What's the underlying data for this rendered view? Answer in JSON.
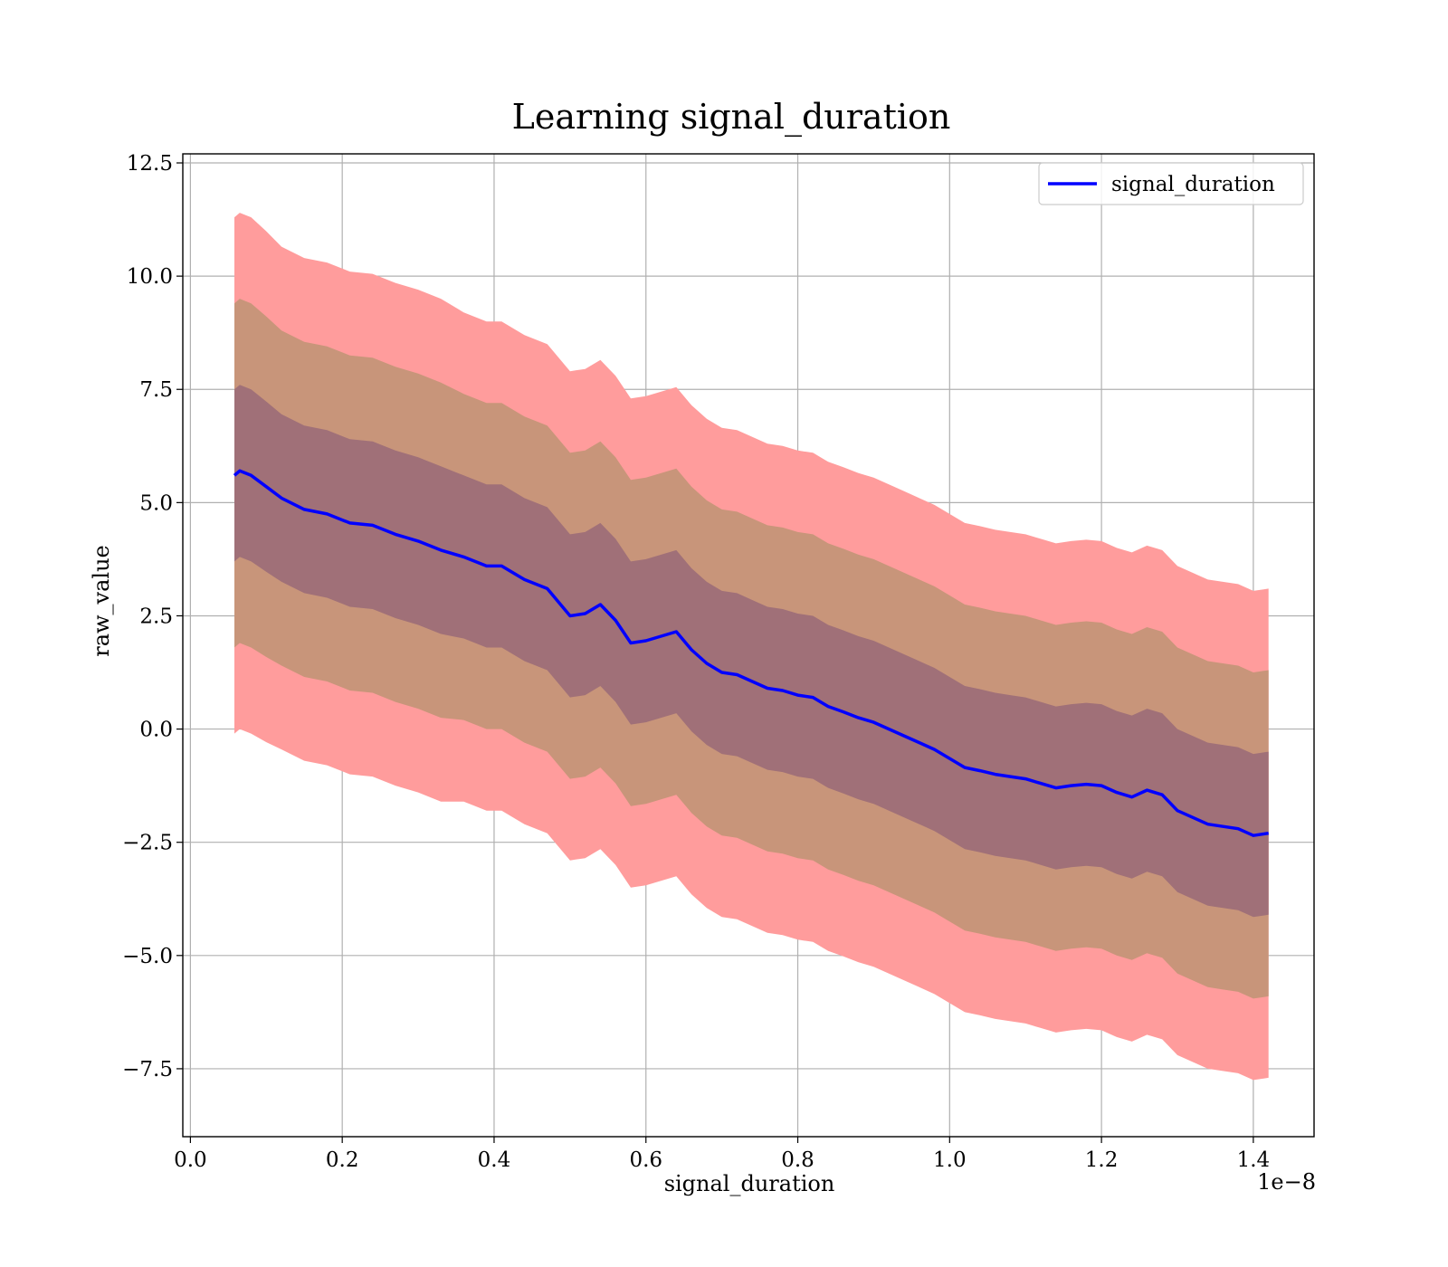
{
  "chart_data": {
    "type": "line",
    "title": "Learning signal_duration",
    "xlabel": "signal_duration",
    "ylabel": "raw_value",
    "x_offset_label": "1e−8",
    "xlim": [
      -0.01,
      1.48
    ],
    "ylim": [
      -9.0,
      12.7
    ],
    "grid": true,
    "legend_position": "top-right",
    "x_ticks": [
      0.0,
      0.2,
      0.4,
      0.6,
      0.8,
      1.0,
      1.2,
      1.4
    ],
    "x_tick_labels": [
      "0.0",
      "0.2",
      "0.4",
      "0.6",
      "0.8",
      "1.0",
      "1.2",
      "1.4"
    ],
    "y_ticks": [
      12.5,
      10.0,
      7.5,
      5.0,
      2.5,
      0.0,
      -2.5,
      -5.0,
      -7.5
    ],
    "y_tick_labels": [
      "12.5",
      "10.0",
      "7.5",
      "5.0",
      "2.5",
      "0.0",
      "−2.5",
      "−5.0",
      "−7.5"
    ],
    "band_colors": [
      "#ff9c9c",
      "#c8957a",
      "#a07078"
    ],
    "series": [
      {
        "name": "signal_duration",
        "color": "#0000ff",
        "x": [
          0.058,
          0.065,
          0.08,
          0.1,
          0.12,
          0.15,
          0.18,
          0.21,
          0.24,
          0.27,
          0.3,
          0.33,
          0.36,
          0.39,
          0.41,
          0.44,
          0.47,
          0.5,
          0.52,
          0.54,
          0.56,
          0.58,
          0.6,
          0.62,
          0.64,
          0.66,
          0.68,
          0.7,
          0.72,
          0.74,
          0.76,
          0.78,
          0.8,
          0.82,
          0.84,
          0.86,
          0.88,
          0.9,
          0.92,
          0.94,
          0.96,
          0.98,
          1.0,
          1.02,
          1.04,
          1.06,
          1.08,
          1.1,
          1.12,
          1.14,
          1.16,
          1.18,
          1.2,
          1.22,
          1.24,
          1.26,
          1.28,
          1.3,
          1.32,
          1.34,
          1.36,
          1.38,
          1.4,
          1.42
        ],
        "values": [
          5.6,
          5.7,
          5.6,
          5.35,
          5.1,
          4.85,
          4.75,
          4.55,
          4.5,
          4.3,
          4.15,
          3.95,
          3.8,
          3.6,
          3.6,
          3.3,
          3.1,
          2.5,
          2.55,
          2.75,
          2.4,
          1.9,
          1.95,
          2.05,
          2.15,
          1.75,
          1.45,
          1.25,
          1.2,
          1.05,
          0.9,
          0.85,
          0.75,
          0.7,
          0.5,
          0.38,
          0.25,
          0.15,
          0.0,
          -0.15,
          -0.3,
          -0.45,
          -0.65,
          -0.85,
          -0.92,
          -1.0,
          -1.05,
          -1.1,
          -1.2,
          -1.3,
          -1.25,
          -1.22,
          -1.25,
          -1.4,
          -1.5,
          -1.35,
          -1.45,
          -1.8,
          -1.95,
          -2.1,
          -2.15,
          -2.2,
          -2.35,
          -2.3
        ],
        "sigma": [
          1.9,
          1.9,
          1.9,
          1.88,
          1.85,
          1.85,
          1.85,
          1.85,
          1.85,
          1.85,
          1.85,
          1.85,
          1.8,
          1.8,
          1.8,
          1.8,
          1.8,
          1.8,
          1.8,
          1.8,
          1.8,
          1.8,
          1.8,
          1.8,
          1.8,
          1.8,
          1.8,
          1.8,
          1.8,
          1.8,
          1.8,
          1.8,
          1.8,
          1.8,
          1.8,
          1.8,
          1.8,
          1.8,
          1.8,
          1.8,
          1.8,
          1.8,
          1.8,
          1.8,
          1.8,
          1.8,
          1.8,
          1.8,
          1.8,
          1.8,
          1.8,
          1.8,
          1.8,
          1.8,
          1.8,
          1.8,
          1.8,
          1.8,
          1.8,
          1.8,
          1.8,
          1.8,
          1.8,
          1.8
        ]
      }
    ]
  }
}
